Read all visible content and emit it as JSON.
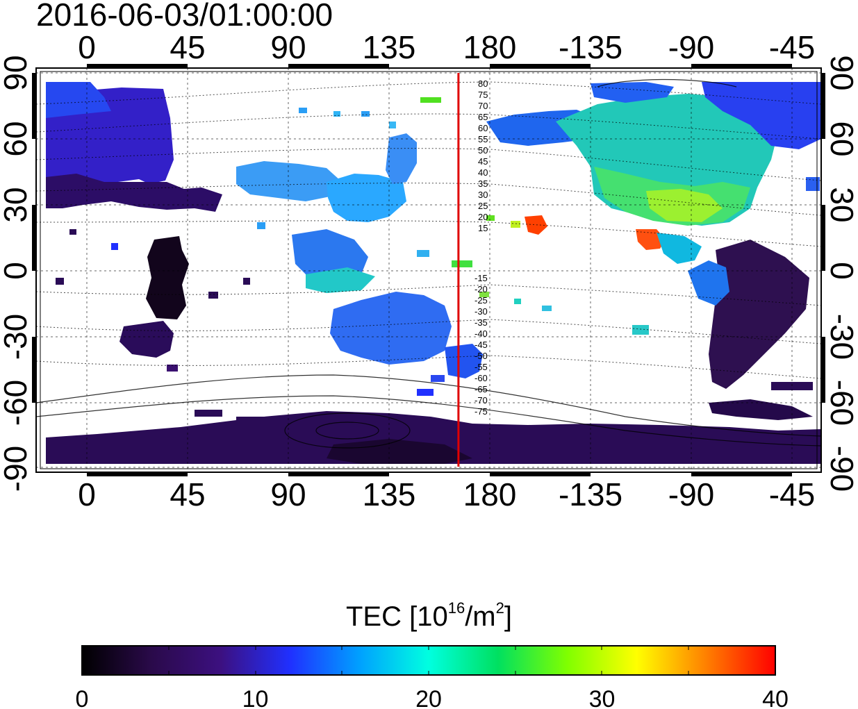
{
  "title": "2016-06-03/01:00:00",
  "map": {
    "lon_ticks_top": [
      "0",
      "45",
      "90",
      "135",
      "180",
      "-135",
      "-90",
      "-45"
    ],
    "lon_ticks_bottom": [
      "0",
      "45",
      "90",
      "135",
      "180",
      "-135",
      "-90",
      "-45"
    ],
    "lat_ticks_left": [
      "90",
      "60",
      "30",
      "0",
      "-30",
      "-60",
      "-90"
    ],
    "lat_ticks_right": [
      "90",
      "60",
      "30",
      "0",
      "-30",
      "-60",
      "-90"
    ],
    "dip_latitude_labels_north": [
      "80",
      "75",
      "70",
      "65",
      "60",
      "55",
      "50",
      "45",
      "40",
      "35",
      "30",
      "25",
      "20",
      "15"
    ],
    "dip_latitude_labels_south": [
      "-15",
      "-20",
      "-25",
      "-30",
      "-35",
      "-40",
      "-45",
      "-50",
      "-55",
      "-60",
      "-65",
      "-70",
      "-75"
    ],
    "marker_longitude": 166,
    "marker_color": "#e00000"
  },
  "colorbar": {
    "title_prefix": "TEC  [10",
    "title_exponent": "16",
    "title_unit": "/m",
    "title_unit_exponent": "2",
    "title_suffix": "]",
    "tick_labels": [
      "0",
      "10",
      "20",
      "30",
      "40"
    ],
    "range": [
      0,
      40
    ],
    "colors": [
      "#000000",
      "#2a0a4a",
      "#3c1080",
      "#2030ff",
      "#00a0ff",
      "#00ffe0",
      "#00e060",
      "#80ff00",
      "#ffff00",
      "#ff8000",
      "#ff0000"
    ]
  }
}
